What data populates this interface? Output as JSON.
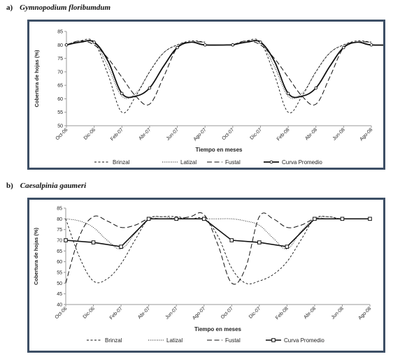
{
  "panels": [
    {
      "letter": "a)",
      "species": "Gymnopodium floribumdum"
    },
    {
      "letter": "b)",
      "species": "Caesalpinia gaumeri"
    }
  ],
  "chart_data": [
    {
      "type": "line",
      "ylabel": "Cobertura de hojas (%)",
      "xlabel": "Tiempo en meses",
      "ylim": [
        50,
        85
      ],
      "yticks": [
        50,
        55,
        60,
        65,
        70,
        75,
        80,
        85
      ],
      "x_tick_labels": [
        "Oct-06",
        "Dic-06",
        "Feb-07",
        "Abr-07",
        "Jun-07",
        "Ago-07",
        "Oct-07",
        "Dic-07",
        "Feb-08",
        "Abr-08",
        "Jun-08",
        "Ago-08"
      ],
      "legend_position": "bottom",
      "series": [
        {
          "name": "Brinzal",
          "style": "dashed-short",
          "points": [
            [
              "Oct-06",
              80
            ],
            [
              "Nov-06",
              81.5
            ],
            [
              "Dic-06",
              81
            ],
            [
              "Ene-07",
              69
            ],
            [
              "Feb-07",
              55
            ],
            [
              "Mar-07",
              61
            ],
            [
              "Abr-07",
              70
            ],
            [
              "May-07",
              77
            ],
            [
              "Jun-07",
              80
            ],
            [
              "Jul-07",
              81.5
            ],
            [
              "Ago-07",
              81
            ]
          ]
        },
        {
          "name": "Latizal",
          "style": "dotted",
          "points": [
            [
              "Oct-06",
              80
            ],
            [
              "Nov-06",
              81
            ],
            [
              "Dic-06",
              81
            ],
            [
              "Ene-07",
              72
            ],
            [
              "Feb-07",
              61
            ],
            [
              "Mar-07",
              62
            ],
            [
              "Abr-07",
              70
            ],
            [
              "May-07",
              77
            ],
            [
              "Jun-07",
              80
            ],
            [
              "Jul-07",
              81
            ],
            [
              "Ago-07",
              81
            ]
          ]
        },
        {
          "name": "Fustal",
          "style": "dashed-long",
          "points": [
            [
              "Oct-06",
              80
            ],
            [
              "Nov-06",
              81.5
            ],
            [
              "Dic-06",
              80
            ],
            [
              "Ene-07",
              75
            ],
            [
              "Feb-07",
              68
            ],
            [
              "Mar-07",
              61
            ],
            [
              "Abr-07",
              58
            ],
            [
              "May-07",
              68
            ],
            [
              "Jun-07",
              79
            ],
            [
              "Jul-07",
              81
            ],
            [
              "Ago-07",
              81
            ]
          ]
        },
        {
          "name": "Curva Promedio",
          "style": "solid-bold",
          "points": [
            [
              "Oct-06",
              80
            ],
            [
              "Nov-06",
              81
            ],
            [
              "Dic-06",
              81
            ],
            [
              "Ene-07",
              74
            ],
            [
              "Feb-07",
              62
            ],
            [
              "Mar-07",
              61
            ],
            [
              "Abr-07",
              64
            ],
            [
              "May-07",
              72
            ],
            [
              "Jun-07",
              79
            ],
            [
              "Jul-07",
              81
            ],
            [
              "Ago-07",
              80
            ],
            [
              "Oct-07",
              80
            ]
          ]
        }
      ],
      "repeats_second_year": true
    },
    {
      "type": "line",
      "ylabel": "Cobertura de hojas (%)",
      "xlabel": "Tiempo en meses",
      "ylim": [
        40,
        85
      ],
      "yticks": [
        40,
        45,
        50,
        55,
        60,
        65,
        70,
        75,
        80,
        85
      ],
      "x_tick_labels": [
        "Oct-06",
        "Dic-06",
        "Feb-07",
        "Abr-07",
        "Jun-07",
        "Ago-07",
        "Oct-07",
        "Dic-07",
        "Feb-08",
        "Abr-08",
        "Jun-08",
        "Ago-08"
      ],
      "legend_position": "bottom",
      "series": [
        {
          "name": "Brinzal",
          "style": "dashed-short",
          "points": [
            [
              "Oct-06",
              80
            ],
            [
              "Nov-06",
              62
            ],
            [
              "Dic-06",
              51
            ],
            [
              "Ene-07",
              52
            ],
            [
              "Feb-07",
              59
            ],
            [
              "Mar-07",
              70
            ],
            [
              "Abr-07",
              80
            ],
            [
              "May-07",
              81
            ],
            [
              "Jun-07",
              81
            ],
            [
              "Jul-07",
              80
            ],
            [
              "Ago-07",
              80
            ],
            [
              "Sep-07",
              72
            ],
            [
              "Oct-07",
              57
            ],
            [
              "Nov-07",
              50
            ],
            [
              "Dic-07",
              51
            ],
            [
              "Ene-08",
              54
            ],
            [
              "Feb-08",
              60
            ],
            [
              "Mar-08",
              70
            ],
            [
              "Abr-08",
              80
            ],
            [
              "May-08",
              81
            ],
            [
              "Jun-08",
              80
            ],
            [
              "Ago-08",
              80
            ]
          ]
        },
        {
          "name": "Latizal",
          "style": "dotted",
          "points": [
            [
              "Oct-06",
              80
            ],
            [
              "Nov-06",
              79
            ],
            [
              "Dic-06",
              76
            ],
            [
              "Ene-07",
              70
            ],
            [
              "Feb-07",
              66
            ],
            [
              "Mar-07",
              73
            ],
            [
              "Abr-07",
              80
            ],
            [
              "May-07",
              81
            ],
            [
              "Jun-07",
              80
            ],
            [
              "Jul-07",
              80
            ],
            [
              "Ago-07",
              80
            ],
            [
              "Sep-07",
              80
            ],
            [
              "Oct-07",
              80
            ],
            [
              "Nov-07",
              79
            ],
            [
              "Dic-07",
              77
            ],
            [
              "Ene-08",
              71
            ],
            [
              "Feb-08",
              66
            ],
            [
              "Mar-08",
              74
            ],
            [
              "Abr-08",
              80
            ],
            [
              "May-08",
              81
            ],
            [
              "Jun-08",
              80
            ],
            [
              "Ago-08",
              80
            ]
          ]
        },
        {
          "name": "Fustal",
          "style": "dashed-long",
          "points": [
            [
              "Oct-06",
              50
            ],
            [
              "Nov-06",
              72
            ],
            [
              "Dic-06",
              81
            ],
            [
              "Ene-07",
              79
            ],
            [
              "Feb-07",
              76
            ],
            [
              "Mar-07",
              77
            ],
            [
              "Abr-07",
              80
            ],
            [
              "May-07",
              80
            ],
            [
              "Jun-07",
              80
            ],
            [
              "Jul-07",
              81
            ],
            [
              "Ago-07",
              82
            ],
            [
              "Sep-07",
              68
            ],
            [
              "Oct-07",
              50
            ],
            [
              "Nov-07",
              57
            ],
            [
              "Dic-07",
              81
            ],
            [
              "Ene-08",
              80
            ],
            [
              "Feb-08",
              76
            ],
            [
              "Mar-08",
              77
            ],
            [
              "Abr-08",
              80
            ],
            [
              "May-08",
              80
            ],
            [
              "Jun-08",
              80
            ],
            [
              "Ago-08",
              80
            ]
          ]
        },
        {
          "name": "Curva Promedio",
          "style": "solid-bold-square-markers",
          "points": [
            [
              "Oct-06",
              70
            ],
            [
              "Dic-06",
              69
            ],
            [
              "Feb-07",
              67
            ],
            [
              "Abr-07",
              80
            ],
            [
              "Jun-07",
              80
            ],
            [
              "Ago-07",
              80
            ],
            [
              "Oct-07",
              70
            ],
            [
              "Dic-07",
              69
            ],
            [
              "Feb-08",
              67
            ],
            [
              "Abr-08",
              80
            ],
            [
              "Jun-08",
              80
            ],
            [
              "Ago-08",
              80
            ]
          ]
        }
      ]
    }
  ]
}
